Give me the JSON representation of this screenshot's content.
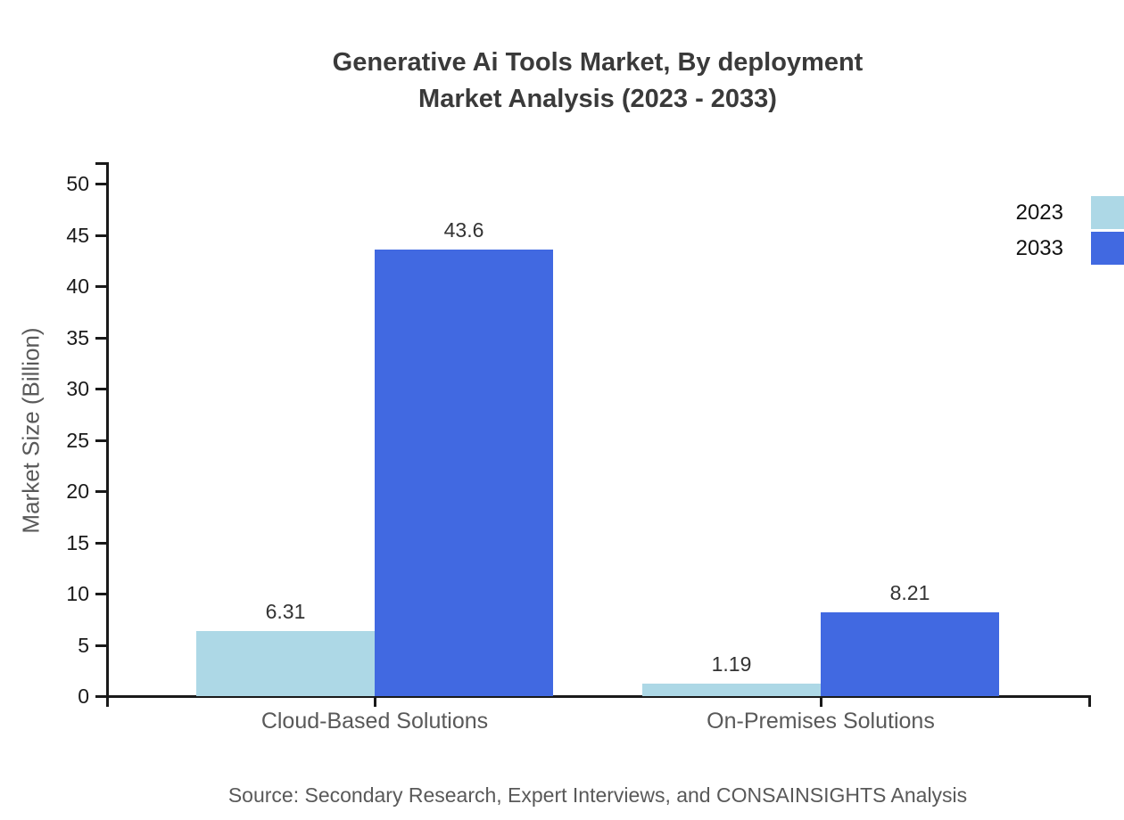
{
  "title": {
    "line1": "Generative Ai Tools Market, By deployment",
    "line2": "Market Analysis (2023 - 2033)"
  },
  "source_note": "Source: Secondary Research, Expert Interviews, and CONSAINSIGHTS Analysis",
  "colors": {
    "series_2023": "#ADD8E6",
    "series_2033": "#4169E1",
    "axis": "#1a1a1a",
    "title_text": "#3a3a3a",
    "muted_text": "#595959",
    "value_text": "#333333"
  },
  "chart_data": {
    "type": "bar",
    "title": "Generative Ai Tools Market, By deployment Market Analysis (2023 - 2033)",
    "categories": [
      "Cloud-Based Solutions",
      "On-Premises Solutions"
    ],
    "series": [
      {
        "name": "2023",
        "color": "#ADD8E6",
        "values": [
          6.31,
          1.19
        ]
      },
      {
        "name": "2033",
        "color": "#4169E1",
        "values": [
          43.6,
          8.21
        ]
      }
    ],
    "value_labels": [
      [
        "6.31",
        "1.19"
      ],
      [
        "43.6",
        "8.21"
      ]
    ],
    "xlabel": "",
    "ylabel": "Market Size (Billion)",
    "ylim": [
      0,
      52
    ],
    "yticks": [
      0,
      5,
      10,
      15,
      20,
      25,
      30,
      35,
      40,
      45,
      50
    ],
    "grid": false,
    "legend_position": "top-right",
    "bar_value_labels": true
  }
}
